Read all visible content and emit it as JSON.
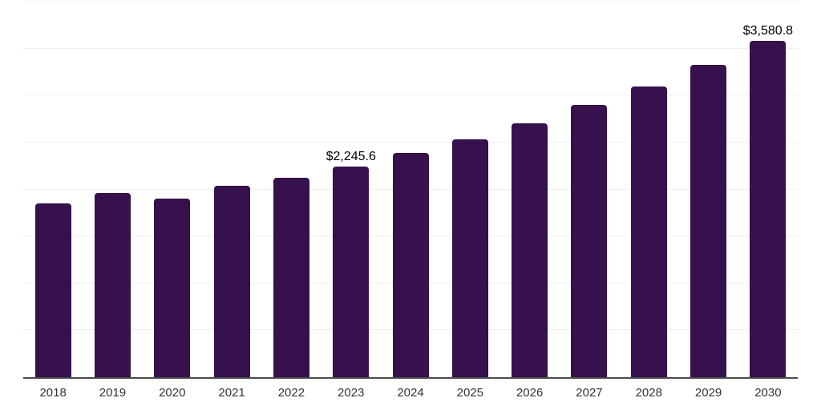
{
  "chart_data": {
    "type": "bar",
    "title": "",
    "xlabel": "",
    "ylabel": "",
    "categories": [
      "2018",
      "2019",
      "2020",
      "2021",
      "2022",
      "2023",
      "2024",
      "2025",
      "2026",
      "2027",
      "2028",
      "2029",
      "2030"
    ],
    "values": [
      1855,
      1965,
      1905,
      2035,
      2120,
      2245.6,
      2384,
      2535,
      2705,
      2900,
      3096,
      3326,
      3580.8
    ],
    "data_labels": [
      "",
      "",
      "",
      "",
      "",
      "$2,245.6",
      "",
      "",
      "",
      "",
      "",
      "",
      "$3,580.8"
    ],
    "ylim": [
      0,
      4000
    ],
    "grid_step": 500,
    "grid": "horizontal",
    "legend": "none",
    "y_tick_labels_visible": false,
    "colors": {
      "bar": "#36114d",
      "gridline": "#f0f0f0",
      "axis_line": "#4c4c4c",
      "x_tick_label": "#333333",
      "data_label": "#000000",
      "background": "#ffffff"
    }
  }
}
